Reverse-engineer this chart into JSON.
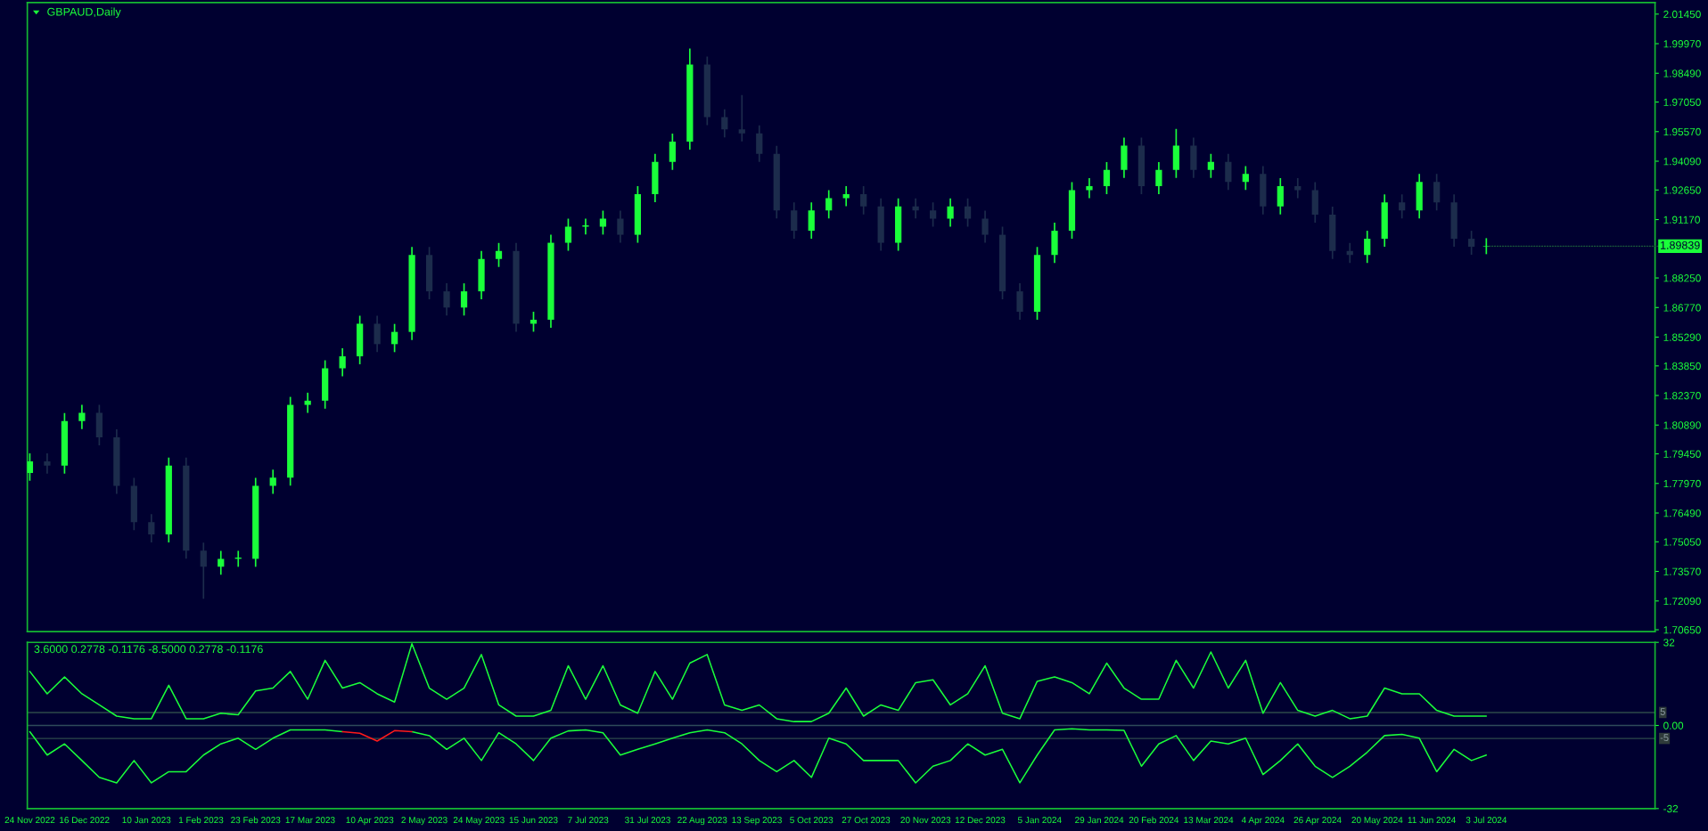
{
  "chart_data": [
    {
      "type": "candlestick",
      "title": "GBPAUD,Daily",
      "x": [
        "2022-11-24",
        "2022-12-01",
        "2022-12-08",
        "2022-12-15",
        "2022-12-22",
        "2022-12-29",
        "2023-01-05",
        "2023-01-12",
        "2023-01-19",
        "2023-01-26",
        "2023-02-02",
        "2023-02-09",
        "2023-02-16",
        "2023-02-23",
        "2023-03-02",
        "2023-03-09",
        "2023-03-16",
        "2023-03-23",
        "2023-03-30",
        "2023-04-06",
        "2023-04-13",
        "2023-04-20",
        "2023-04-27",
        "2023-05-04",
        "2023-05-11",
        "2023-05-18",
        "2023-05-25",
        "2023-06-01",
        "2023-06-08",
        "2023-06-15",
        "2023-06-22",
        "2023-06-29",
        "2023-07-06",
        "2023-07-13",
        "2023-07-20",
        "2023-07-27",
        "2023-08-03",
        "2023-08-10",
        "2023-08-17",
        "2023-08-24",
        "2023-08-31",
        "2023-09-07",
        "2023-09-14",
        "2023-09-21",
        "2023-09-28",
        "2023-10-05",
        "2023-10-12",
        "2023-10-19",
        "2023-10-26",
        "2023-11-02",
        "2023-11-09",
        "2023-11-16",
        "2023-11-23",
        "2023-11-30",
        "2023-12-07",
        "2023-12-14",
        "2023-12-21",
        "2023-12-28",
        "2024-01-04",
        "2024-01-11",
        "2024-01-18",
        "2024-01-25",
        "2024-02-01",
        "2024-02-08",
        "2024-02-15",
        "2024-02-22",
        "2024-02-29",
        "2024-03-07",
        "2024-03-14",
        "2024-03-21",
        "2024-03-28",
        "2024-04-04",
        "2024-04-11",
        "2024-04-18",
        "2024-04-25",
        "2024-05-02",
        "2024-05-09",
        "2024-05-16",
        "2024-05-23",
        "2024-05-30",
        "2024-06-06",
        "2024-06-13",
        "2024-06-20",
        "2024-06-27",
        "2024-07-03"
      ],
      "ohlc": [
        [
          1.785,
          1.7947,
          1.781,
          1.7907
        ],
        [
          1.7907,
          1.7947,
          1.7846,
          1.7886
        ],
        [
          1.7886,
          1.8149,
          1.7846,
          1.8109
        ],
        [
          1.8109,
          1.819,
          1.8069,
          1.815
        ],
        [
          1.815,
          1.819,
          1.7988,
          1.8028
        ],
        [
          1.8028,
          1.8068,
          1.7745,
          1.7785
        ],
        [
          1.7785,
          1.7825,
          1.7563,
          1.7603
        ],
        [
          1.7603,
          1.7643,
          1.7502,
          1.7542
        ],
        [
          1.7542,
          1.7926,
          1.7502,
          1.7886
        ],
        [
          1.7886,
          1.7926,
          1.7421,
          1.7461
        ],
        [
          1.7461,
          1.7501,
          1.722,
          1.738
        ],
        [
          1.738,
          1.746,
          1.734,
          1.742
        ],
        [
          1.742,
          1.746,
          1.738,
          1.742
        ],
        [
          1.742,
          1.7825,
          1.738,
          1.7785
        ],
        [
          1.7785,
          1.7866,
          1.7745,
          1.7826
        ],
        [
          1.7826,
          1.823,
          1.7786,
          1.819
        ],
        [
          1.819,
          1.8251,
          1.815,
          1.8211
        ],
        [
          1.8211,
          1.8413,
          1.8171,
          1.8373
        ],
        [
          1.8373,
          1.8473,
          1.8333,
          1.8433
        ],
        [
          1.8433,
          1.8636,
          1.8393,
          1.8596
        ],
        [
          1.8596,
          1.8636,
          1.8454,
          1.8494
        ],
        [
          1.8494,
          1.8595,
          1.8454,
          1.8555
        ],
        [
          1.8555,
          1.898,
          1.8515,
          1.894
        ],
        [
          1.894,
          1.898,
          1.8718,
          1.8758
        ],
        [
          1.8758,
          1.8798,
          1.8637,
          1.8677
        ],
        [
          1.8677,
          1.8798,
          1.8637,
          1.8758
        ],
        [
          1.8758,
          1.896,
          1.8718,
          1.892
        ],
        [
          1.892,
          1.9,
          1.888,
          1.896
        ],
        [
          1.896,
          1.9,
          1.8556,
          1.8596
        ],
        [
          1.8596,
          1.8656,
          1.8556,
          1.8616
        ],
        [
          1.8616,
          1.9041,
          1.8576,
          1.9001
        ],
        [
          1.9001,
          1.9122,
          1.8961,
          1.9082
        ],
        [
          1.9082,
          1.9122,
          1.9042,
          1.9082
        ],
        [
          1.9082,
          1.9162,
          1.9042,
          1.9122
        ],
        [
          1.9122,
          1.9162,
          1.9001,
          1.9041
        ],
        [
          1.9041,
          1.9284,
          1.9001,
          1.9244
        ],
        [
          1.9244,
          1.9446,
          1.9204,
          1.9406
        ],
        [
          1.9406,
          1.9547,
          1.9366,
          1.9507
        ],
        [
          1.9507,
          1.9973,
          1.9467,
          1.9892
        ],
        [
          1.9892,
          1.9932,
          1.9589,
          1.9629
        ],
        [
          1.9629,
          1.9669,
          1.9528,
          1.9568
        ],
        [
          1.9568,
          1.974,
          1.9508,
          1.9548
        ],
        [
          1.9548,
          1.9588,
          1.9406,
          1.9446
        ],
        [
          1.9446,
          1.9486,
          1.9123,
          1.9163
        ],
        [
          1.9163,
          1.9203,
          1.9021,
          1.9061
        ],
        [
          1.9061,
          1.9203,
          1.9021,
          1.9163
        ],
        [
          1.9163,
          1.9264,
          1.9123,
          1.9224
        ],
        [
          1.9224,
          1.9284,
          1.9184,
          1.9244
        ],
        [
          1.9244,
          1.9284,
          1.9143,
          1.9183
        ],
        [
          1.9183,
          1.9223,
          1.8961,
          1.9001
        ],
        [
          1.9001,
          1.9223,
          1.8961,
          1.9183
        ],
        [
          1.9183,
          1.9223,
          1.9123,
          1.9163
        ],
        [
          1.9163,
          1.9203,
          1.9082,
          1.9122
        ],
        [
          1.9122,
          1.9223,
          1.9082,
          1.9183
        ],
        [
          1.9183,
          1.9223,
          1.9082,
          1.9122
        ],
        [
          1.9122,
          1.9162,
          1.9001,
          1.9041
        ],
        [
          1.9041,
          1.9081,
          1.8718,
          1.8758
        ],
        [
          1.8758,
          1.8798,
          1.8616,
          1.8656
        ],
        [
          1.8656,
          1.898,
          1.8616,
          1.894
        ],
        [
          1.894,
          1.9101,
          1.89,
          1.9061
        ],
        [
          1.9061,
          1.9304,
          1.9021,
          1.9264
        ],
        [
          1.9264,
          1.9324,
          1.9224,
          1.9284
        ],
        [
          1.9284,
          1.9405,
          1.9244,
          1.9365
        ],
        [
          1.9365,
          1.9527,
          1.9325,
          1.9487
        ],
        [
          1.9487,
          1.9527,
          1.9244,
          1.9284
        ],
        [
          1.9284,
          1.9405,
          1.9244,
          1.9365
        ],
        [
          1.9365,
          1.957,
          1.9325,
          1.9487
        ],
        [
          1.9487,
          1.9527,
          1.9325,
          1.9365
        ],
        [
          1.9365,
          1.9446,
          1.9325,
          1.9406
        ],
        [
          1.9406,
          1.9446,
          1.9265,
          1.9305
        ],
        [
          1.9305,
          1.9385,
          1.9265,
          1.9345
        ],
        [
          1.9345,
          1.9385,
          1.9143,
          1.9183
        ],
        [
          1.9183,
          1.9324,
          1.9143,
          1.9284
        ],
        [
          1.9284,
          1.9324,
          1.9224,
          1.9264
        ],
        [
          1.9264,
          1.9304,
          1.9102,
          1.9142
        ],
        [
          1.9142,
          1.9182,
          1.892,
          1.896
        ],
        [
          1.896,
          1.9,
          1.89,
          1.894
        ],
        [
          1.894,
          1.9061,
          1.89,
          1.9021
        ],
        [
          1.9021,
          1.9243,
          1.8981,
          1.9203
        ],
        [
          1.9203,
          1.9243,
          1.9123,
          1.9163
        ],
        [
          1.9163,
          1.9345,
          1.9123,
          1.9305
        ],
        [
          1.9305,
          1.9345,
          1.9163,
          1.9203
        ],
        [
          1.9203,
          1.9243,
          1.8981,
          1.9021
        ],
        [
          1.9021,
          1.9061,
          1.8941,
          1.8981
        ],
        [
          1.8981,
          1.9024,
          1.8944,
          1.89839
        ]
      ],
      "colors": [
        "#1aff3a",
        "#1c2c4c",
        "#1aff3a",
        "#1aff3a",
        "#1c2c4c",
        "#1c2c4c",
        "#1c2c4c",
        "#1c2c4c",
        "#1aff3a",
        "#1c2c4c",
        "#1c2c4c",
        "#1aff3a",
        "#1aff3a",
        "#1aff3a",
        "#1aff3a",
        "#1aff3a",
        "#1aff3a",
        "#1aff3a",
        "#1aff3a",
        "#1aff3a",
        "#1c2c4c",
        "#1aff3a",
        "#1aff3a",
        "#1c2c4c",
        "#1c2c4c",
        "#1aff3a",
        "#1aff3a",
        "#1aff3a",
        "#1c2c4c",
        "#1aff3a",
        "#1aff3a",
        "#1aff3a",
        "#1aff3a",
        "#1aff3a",
        "#1c2c4c",
        "#1aff3a",
        "#1aff3a",
        "#1aff3a",
        "#1aff3a",
        "#1c2c4c",
        "#1c2c4c",
        "#1c2c4c",
        "#1c2c4c",
        "#1c2c4c",
        "#1c2c4c",
        "#1aff3a",
        "#1aff3a",
        "#1aff3a",
        "#1c2c4c",
        "#1c2c4c",
        "#1aff3a",
        "#1c2c4c",
        "#1c2c4c",
        "#1aff3a",
        "#1c2c4c",
        "#1c2c4c",
        "#1c2c4c",
        "#1c2c4c",
        "#1aff3a",
        "#1aff3a",
        "#1aff3a",
        "#1aff3a",
        "#1aff3a",
        "#1aff3a",
        "#1c2c4c",
        "#1aff3a",
        "#1aff3a",
        "#1c2c4c",
        "#1aff3a",
        "#1c2c4c",
        "#1aff3a",
        "#1c2c4c",
        "#1aff3a",
        "#1c2c4c",
        "#1c2c4c",
        "#1c2c4c",
        "#1c2c4c",
        "#1aff3a",
        "#1aff3a",
        "#1c2c4c",
        "#1aff3a",
        "#1c2c4c",
        "#1c2c4c",
        "#1c2c4c",
        "#1aff3a"
      ],
      "xlim": [
        "2022-11-23",
        "2024-09-09"
      ],
      "ylim": [
        1.7056,
        2.0203
      ],
      "yticks": [
        {
          "value": 1.7065,
          "label": "1.70650"
        },
        {
          "value": 1.7209,
          "label": "1.72090"
        },
        {
          "value": 1.7357,
          "label": "1.73570"
        },
        {
          "value": 1.7505,
          "label": "1.75050"
        },
        {
          "value": 1.7649,
          "label": "1.76490"
        },
        {
          "value": 1.7797,
          "label": "1.77970"
        },
        {
          "value": 1.7945,
          "label": "1.79450"
        },
        {
          "value": 1.8089,
          "label": "1.80890"
        },
        {
          "value": 1.8237,
          "label": "1.82370"
        },
        {
          "value": 1.8385,
          "label": "1.83850"
        },
        {
          "value": 1.8529,
          "label": "1.85290"
        },
        {
          "value": 1.8677,
          "label": "1.86770"
        },
        {
          "value": 1.8825,
          "label": "1.88250"
        },
        {
          "value": 1.9117,
          "label": "1.91170"
        },
        {
          "value": 1.9265,
          "label": "1.92650"
        },
        {
          "value": 1.9409,
          "label": "1.94090"
        },
        {
          "value": 1.9557,
          "label": "1.95570"
        },
        {
          "value": 1.9705,
          "label": "1.97050"
        },
        {
          "value": 1.9849,
          "label": "1.98490"
        },
        {
          "value": 1.9997,
          "label": "1.99970"
        },
        {
          "value": 2.0145,
          "label": "2.01450"
        }
      ],
      "annotations": [
        {
          "text": "1.89839",
          "x": "2024-07-03",
          "y": 1.89839
        }
      ],
      "tick_labels": "y",
      "grid": false,
      "legend": false
    },
    {
      "type": "line",
      "title": "3.6000 0.2778 -0.1176 -8.5000 0.2778 -0.1176",
      "x": [
        "2022-11-24",
        "2022-12-01",
        "2022-12-08",
        "2022-12-15",
        "2022-12-22",
        "2022-12-29",
        "2023-01-05",
        "2023-01-12",
        "2023-01-19",
        "2023-01-26",
        "2023-02-02",
        "2023-02-09",
        "2023-02-16",
        "2023-02-23",
        "2023-03-02",
        "2023-03-09",
        "2023-03-16",
        "2023-03-23",
        "2023-03-30",
        "2023-04-06",
        "2023-04-13",
        "2023-04-20",
        "2023-04-27",
        "2023-05-04",
        "2023-05-11",
        "2023-05-18",
        "2023-05-25",
        "2023-06-01",
        "2023-06-08",
        "2023-06-15",
        "2023-06-22",
        "2023-06-29",
        "2023-07-06",
        "2023-07-13",
        "2023-07-20",
        "2023-07-27",
        "2023-08-03",
        "2023-08-10",
        "2023-08-17",
        "2023-08-24",
        "2023-08-31",
        "2023-09-07",
        "2023-09-14",
        "2023-09-21",
        "2023-09-28",
        "2023-10-05",
        "2023-10-12",
        "2023-10-19",
        "2023-10-26",
        "2023-11-02",
        "2023-11-09",
        "2023-11-16",
        "2023-11-23",
        "2023-11-30",
        "2023-12-07",
        "2023-12-14",
        "2023-12-21",
        "2023-12-28",
        "2024-01-04",
        "2024-01-11",
        "2024-01-18",
        "2024-01-25",
        "2024-02-01",
        "2024-02-08",
        "2024-02-15",
        "2024-02-22",
        "2024-02-29",
        "2024-03-07",
        "2024-03-14",
        "2024-03-21",
        "2024-03-28",
        "2024-04-04",
        "2024-04-11",
        "2024-04-18",
        "2024-04-25",
        "2024-05-02",
        "2024-05-09",
        "2024-05-16",
        "2024-05-23",
        "2024-05-30",
        "2024-06-06",
        "2024-06-13",
        "2024-06-20",
        "2024-06-27",
        "2024-07-03"
      ],
      "series": [
        {
          "color": "#1aff3a",
          "values": [
            20.8,
            12.2,
            18.7,
            12.2,
            7.9,
            3.6,
            2.6,
            2.6,
            15.5,
            2.6,
            2.6,
            4.7,
            4.1,
            13.3,
            14.4,
            20.8,
            10.1,
            25.1,
            14.4,
            16.5,
            12.2,
            9.0,
            31.5,
            14.4,
            10.1,
            14.4,
            27.3,
            7.9,
            3.6,
            3.6,
            5.8,
            23.0,
            10.1,
            23.0,
            7.9,
            4.7,
            20.8,
            10.1,
            24.0,
            27.3,
            7.9,
            5.8,
            7.9,
            2.6,
            1.5,
            1.5,
            4.7,
            14.4,
            3.6,
            7.9,
            5.8,
            16.5,
            17.6,
            7.9,
            12.2,
            23.0,
            4.7,
            2.6,
            17.0,
            18.7,
            16.5,
            12.2,
            24.0,
            14.4,
            10.1,
            10.1,
            25.1,
            14.4,
            28.3,
            14.4,
            25.1,
            4.7,
            16.5,
            5.8,
            3.6,
            5.8,
            2.6,
            3.6,
            14.4,
            12.2,
            12.2,
            5.8,
            3.6,
            3.6,
            3.6
          ]
        },
        {
          "color": "#1aff3a",
          "values": [
            -2.4,
            -11.4,
            -7.1,
            -13.5,
            -20.0,
            -22.1,
            -13.5,
            -22.1,
            -17.8,
            -17.8,
            -11.4,
            -7.1,
            -4.9,
            -9.2,
            -4.9,
            -1.7,
            -1.7,
            -1.7,
            -2.4,
            null,
            null,
            null,
            -2.4,
            -3.9,
            -9.2,
            -4.9,
            -13.5,
            -2.8,
            -7.1,
            -13.5,
            -4.9,
            -2.1,
            -1.7,
            -2.8,
            -11.4,
            -9.2,
            -7.1,
            -4.9,
            -2.8,
            -1.7,
            -2.8,
            -7.1,
            -13.5,
            -17.8,
            -13.5,
            -20.0,
            -4.9,
            -7.1,
            -13.5,
            -13.5,
            -13.5,
            -22.1,
            -15.7,
            -13.5,
            -7.1,
            -11.4,
            -9.2,
            -22.1,
            -11.4,
            -1.7,
            -1.3,
            -1.7,
            -1.7,
            -1.9,
            -15.7,
            -7.1,
            -3.9,
            -13.5,
            -6.0,
            -7.1,
            -4.9,
            -18.9,
            -13.5,
            -7.1,
            -15.7,
            -20.0,
            -15.7,
            -10.3,
            -3.9,
            -3.4,
            -4.9,
            -17.8,
            -9.2,
            -13.5,
            -11.4
          ]
        },
        {
          "color": "#ff1a1a",
          "x": [
            "2023-03-30",
            "2023-04-06",
            "2023-04-13",
            "2023-04-20",
            "2023-04-27"
          ],
          "values": [
            -2.4,
            -3.0,
            -6.0,
            -2.0,
            -2.4
          ]
        }
      ],
      "xlim": [
        "2022-11-23",
        "2024-09-09"
      ],
      "ylim": [
        -32,
        32
      ],
      "yticks": [
        32,
        {
          "value": 0,
          "label": "0.00"
        },
        -32
      ],
      "xticks": [
        {
          "value": "2022-11-24",
          "label": "24 Nov 2022"
        },
        {
          "value": "2022-12-16",
          "label": "16 Dec 2022"
        },
        {
          "value": "2023-01-10",
          "label": "10 Jan 2023"
        },
        {
          "value": "2023-02-01",
          "label": "1 Feb 2023"
        },
        {
          "value": "2023-02-23",
          "label": "23 Feb 2023"
        },
        {
          "value": "2023-03-17",
          "label": "17 Mar 2023"
        },
        {
          "value": "2023-04-10",
          "label": "10 Apr 2023"
        },
        {
          "value": "2023-05-02",
          "label": "2 May 2023"
        },
        {
          "value": "2023-05-24",
          "label": "24 May 2023"
        },
        {
          "value": "2023-06-15",
          "label": "15 Jun 2023"
        },
        {
          "value": "2023-07-07",
          "label": "7 Jul 2023"
        },
        {
          "value": "2023-07-31",
          "label": "31 Jul 2023"
        },
        {
          "value": "2023-08-22",
          "label": "22 Aug 2023"
        },
        {
          "value": "2023-09-13",
          "label": "13 Sep 2023"
        },
        {
          "value": "2023-10-05",
          "label": "5 Oct 2023"
        },
        {
          "value": "2023-10-27",
          "label": "27 Oct 2023"
        },
        {
          "value": "2023-11-20",
          "label": "20 Nov 2023"
        },
        {
          "value": "2023-12-12",
          "label": "12 Dec 2023"
        },
        {
          "value": "2024-01-05",
          "label": "5 Jan 2024"
        },
        {
          "value": "2024-01-29",
          "label": "29 Jan 2024"
        },
        {
          "value": "2024-02-20",
          "label": "20 Feb 2024"
        },
        {
          "value": "2024-03-13",
          "label": "13 Mar 2024"
        },
        {
          "value": "2024-04-04",
          "label": "4 Apr 2024"
        },
        {
          "value": "2024-04-26",
          "label": "26 Apr 2024"
        },
        {
          "value": "2024-05-20",
          "label": "20 May 2024"
        },
        {
          "value": "2024-06-11",
          "label": "11 Jun 2024"
        },
        {
          "value": "2024-07-03",
          "label": "3 Jul 2024"
        }
      ],
      "ref_lines": [
        {
          "axis": "y",
          "value": 5,
          "label": "5",
          "color": "#2e4a4a"
        },
        {
          "axis": "y",
          "value": 0,
          "label": null,
          "color": "#2e4a5a"
        },
        {
          "axis": "y",
          "value": -5,
          "label": "-5",
          "color": "#2e4a4a"
        }
      ],
      "grid": false,
      "legend": false,
      "marker": "none",
      "line_style": "solid"
    }
  ]
}
